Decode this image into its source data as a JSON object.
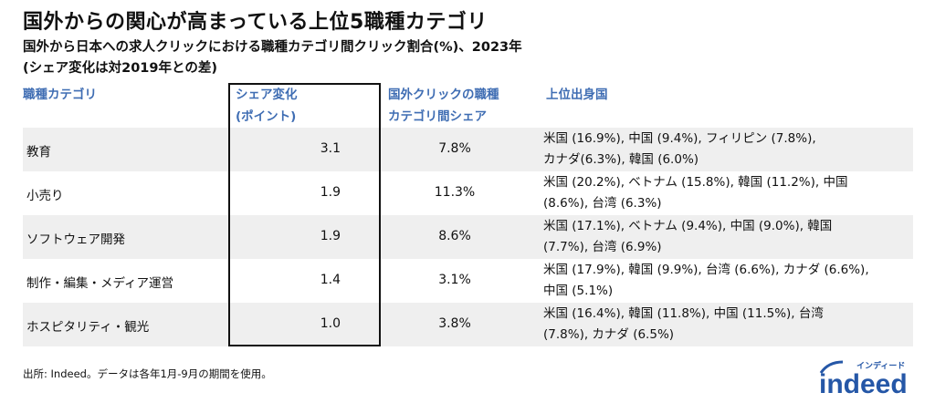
{
  "title": "国外からの関心が高まっている上位5職種カテゴリ",
  "subtitle": "国外から日本への求人クリックにおける職種カテゴリ間クリック割合(%)、2023年",
  "note": "(シェア変化は対2019年との差)",
  "headers": {
    "category": "職種カテゴリ",
    "change_1": "シェア変化",
    "change_2": "(ポイント)",
    "share_1": "国外クリックの職種",
    "share_2": "カテゴリ間シェア",
    "countries": "上位出身国"
  },
  "rows": [
    {
      "category": "教育",
      "change": "3.1",
      "share": "7.8%",
      "countries_1": "米国 (16.9%), 中国 (9.4%), フィリピン (7.8%),",
      "countries_2": "カナダ(6.3%), 韓国 (6.0%)"
    },
    {
      "category": "小売り",
      "change": "1.9",
      "share": "11.3%",
      "countries_1": "米国 (20.2%), ベトナム (15.8%), 韓国 (11.2%), 中国",
      "countries_2": "(8.6%), 台湾 (6.3%)"
    },
    {
      "category": "ソフトウェア開発",
      "change": "1.9",
      "share": "8.6%",
      "countries_1": "米国 (17.1%), ベトナム (9.4%), 中国 (9.0%), 韓国",
      "countries_2": "(7.7%), 台湾 (6.9%)"
    },
    {
      "category": "制作・編集・メディア運営",
      "change": "1.4",
      "share": "3.1%",
      "countries_1": "米国 (17.9%), 韓国 (9.9%), 台湾 (6.6%), カナダ (6.6%),",
      "countries_2": "中国 (5.1%)"
    },
    {
      "category": "ホスピタリティ・観光",
      "change": "1.0",
      "share": "3.8%",
      "countries_1": "米国 (16.4%), 韓国 (11.8%), 中国 (11.5%), 台湾",
      "countries_2": "(7.8%), カナダ (6.5%)"
    }
  ],
  "footer": "出所: Indeed。データは各年1月-9月の期間を使用。",
  "logo": {
    "text": "indeed",
    "kana": "インディード",
    "color": "#2557a7"
  },
  "colors": {
    "header": "#3f6db3",
    "band": "#efefef"
  }
}
